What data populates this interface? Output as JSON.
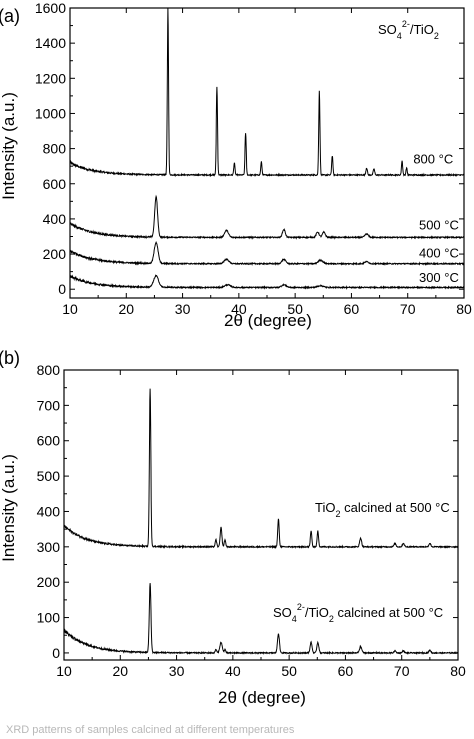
{
  "chart_data": [
    {
      "panel_label": "(a)",
      "type": "line",
      "xlabel": "2θ (degree)",
      "ylabel": "Intensity (a.u.)",
      "xlim": [
        10,
        80
      ],
      "ylim": [
        -50,
        1600
      ],
      "xticks": [
        10,
        20,
        30,
        40,
        50,
        60,
        70,
        80
      ],
      "yticks": [
        0,
        200,
        400,
        600,
        800,
        1000,
        1200,
        1400,
        1600
      ],
      "title_annotation": "SO4 2-/TiO2",
      "series": [
        {
          "name": "800 °C",
          "baseline": 650,
          "start": 720,
          "label_x": 71,
          "label_y": 715,
          "peaks": [
            [
              27.4,
              950,
              0.25
            ],
            [
              36.1,
              500,
              0.25
            ],
            [
              39.2,
              70,
              0.25
            ],
            [
              41.2,
              240,
              0.25
            ],
            [
              44.0,
              75,
              0.25
            ],
            [
              54.3,
              480,
              0.25
            ],
            [
              56.6,
              110,
              0.25
            ],
            [
              62.7,
              40,
              0.3
            ],
            [
              64.0,
              35,
              0.3
            ],
            [
              69.0,
              80,
              0.25
            ],
            [
              69.8,
              40,
              0.25
            ]
          ]
        },
        {
          "name": "500 °C",
          "baseline": 295,
          "start": 375,
          "label_x": 72,
          "label_y": 340,
          "peaks": [
            [
              25.3,
              230,
              0.6
            ],
            [
              37.8,
              40,
              0.8
            ],
            [
              48.0,
              45,
              0.6
            ],
            [
              54.0,
              30,
              0.6
            ],
            [
              55.1,
              30,
              0.6
            ],
            [
              62.7,
              20,
              0.7
            ]
          ]
        },
        {
          "name": "400 °C",
          "baseline": 145,
          "start": 220,
          "label_x": 72,
          "label_y": 180,
          "peaks": [
            [
              25.3,
              120,
              0.8
            ],
            [
              37.8,
              25,
              1.0
            ],
            [
              48.0,
              25,
              0.8
            ],
            [
              54.5,
              20,
              1.0
            ],
            [
              62.7,
              12,
              0.8
            ]
          ]
        },
        {
          "name": "300 °C",
          "baseline": 10,
          "start": 75,
          "label_x": 72,
          "label_y": 40,
          "peaks": [
            [
              25.3,
              65,
              1.0
            ],
            [
              38.0,
              15,
              1.2
            ],
            [
              48.0,
              15,
              1.0
            ],
            [
              54.5,
              10,
              1.2
            ]
          ]
        }
      ]
    },
    {
      "panel_label": "(b)",
      "type": "line",
      "xlabel": "2θ (degree)",
      "ylabel": "Intensity (a.u.)",
      "xlim": [
        10,
        80
      ],
      "ylim": [
        -20,
        800
      ],
      "xticks": [
        10,
        20,
        30,
        40,
        50,
        60,
        70,
        80
      ],
      "yticks": [
        0,
        100,
        200,
        300,
        400,
        500,
        600,
        700,
        800
      ],
      "series": [
        {
          "name": "TiO2 calcined at 500 °C",
          "baseline": 300,
          "start": 360,
          "label_x": 55,
          "label_y": 385,
          "peaks": [
            [
              25.3,
              445,
              0.3
            ],
            [
              37.0,
              20,
              0.3
            ],
            [
              37.9,
              55,
              0.35
            ],
            [
              38.6,
              20,
              0.3
            ],
            [
              48.1,
              80,
              0.3
            ],
            [
              53.9,
              45,
              0.3
            ],
            [
              55.1,
              45,
              0.3
            ],
            [
              62.7,
              25,
              0.4
            ],
            [
              68.8,
              10,
              0.4
            ],
            [
              70.3,
              10,
              0.4
            ],
            [
              75.0,
              10,
              0.4
            ]
          ]
        },
        {
          "name": "SO4 2-/TiO2 calcined at 500 °C",
          "baseline": 0,
          "start": 65,
          "label_x": 52,
          "label_y": 85,
          "peaks": [
            [
              25.3,
              195,
              0.35
            ],
            [
              37.0,
              10,
              0.3
            ],
            [
              37.9,
              30,
              0.5
            ],
            [
              38.6,
              10,
              0.3
            ],
            [
              48.1,
              55,
              0.4
            ],
            [
              53.9,
              30,
              0.4
            ],
            [
              55.1,
              30,
              0.4
            ],
            [
              62.7,
              17,
              0.5
            ],
            [
              68.8,
              6,
              0.4
            ],
            [
              70.3,
              6,
              0.4
            ],
            [
              75.0,
              8,
              0.4
            ]
          ]
        }
      ]
    }
  ],
  "footer_text": "XRD patterns of samples calcined at different temperatures"
}
